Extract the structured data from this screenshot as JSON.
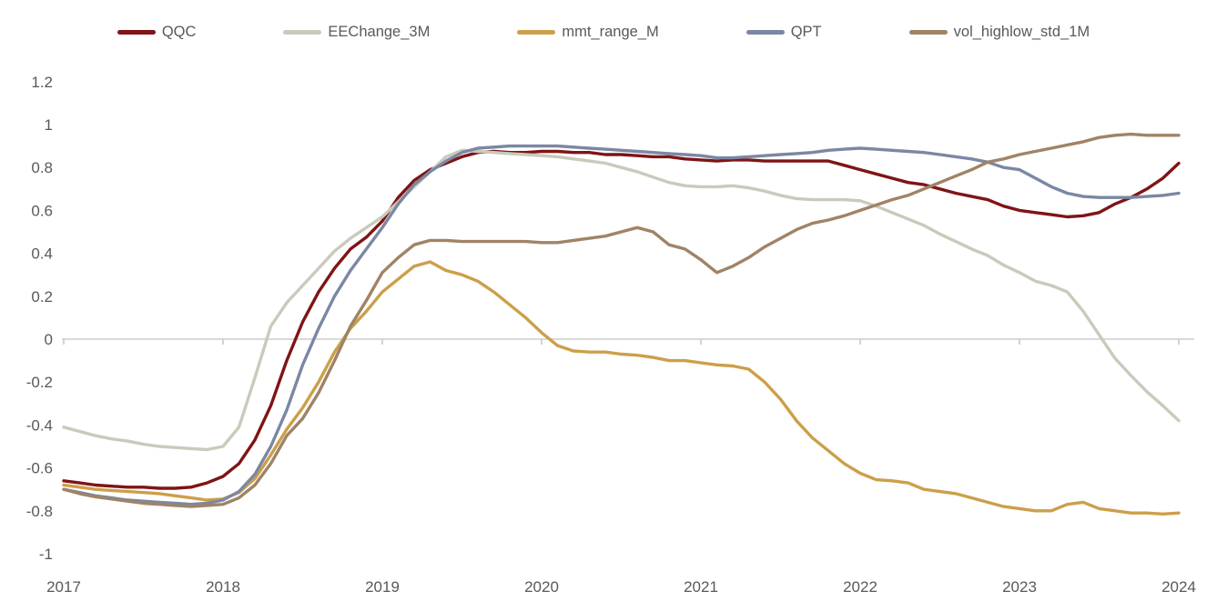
{
  "chart_data": {
    "type": "line",
    "title": "",
    "xlabel": "",
    "ylabel": "",
    "x_start": 2017,
    "x_step": 0.1,
    "x_ticks": [
      "2017",
      "2018",
      "2019",
      "2020",
      "2021",
      "2022",
      "2023",
      "2024"
    ],
    "y_ticks": [
      "1.2",
      "1",
      "0.8",
      "0.6",
      "0.4",
      "0.2",
      "0",
      "-0.2",
      "-0.4",
      "-0.6",
      "-0.8",
      "-1"
    ],
    "ylim": [
      -1,
      1.2
    ],
    "xlim": [
      2017,
      2024
    ],
    "grid": "zero-line-only",
    "legend_position": "top",
    "background_color": "#ffffff",
    "axis_text_color": "#595959",
    "zero_line_color": "#d9d9d9",
    "tick_mark_color": "#c6c6c6",
    "series": [
      {
        "name": "QQC",
        "color": "#7f1416",
        "values": [
          -0.66,
          -0.67,
          -0.68,
          -0.685,
          -0.69,
          -0.69,
          -0.695,
          -0.695,
          -0.69,
          -0.67,
          -0.64,
          -0.58,
          -0.47,
          -0.31,
          -0.1,
          0.08,
          0.22,
          0.33,
          0.42,
          0.475,
          0.55,
          0.66,
          0.74,
          0.79,
          0.82,
          0.85,
          0.87,
          0.875,
          0.87,
          0.87,
          0.875,
          0.875,
          0.87,
          0.87,
          0.86,
          0.86,
          0.855,
          0.85,
          0.85,
          0.84,
          0.835,
          0.83,
          0.835,
          0.835,
          0.83,
          0.83,
          0.83,
          0.83,
          0.83,
          0.81,
          0.79,
          0.77,
          0.75,
          0.73,
          0.72,
          0.7,
          0.68,
          0.665,
          0.65,
          0.62,
          0.6,
          0.59,
          0.58,
          0.57,
          0.575,
          0.59,
          0.63,
          0.66,
          0.7,
          0.75,
          0.82
        ]
      },
      {
        "name": "EEChange_3M",
        "color": "#c8cbbb",
        "values": [
          -0.41,
          -0.43,
          -0.45,
          -0.465,
          -0.475,
          -0.49,
          -0.5,
          -0.505,
          -0.51,
          -0.515,
          -0.5,
          -0.41,
          -0.18,
          0.06,
          0.17,
          0.25,
          0.33,
          0.41,
          0.47,
          0.52,
          0.57,
          0.64,
          0.71,
          0.78,
          0.85,
          0.88,
          0.875,
          0.87,
          0.865,
          0.86,
          0.855,
          0.85,
          0.84,
          0.83,
          0.82,
          0.8,
          0.78,
          0.755,
          0.73,
          0.715,
          0.71,
          0.71,
          0.715,
          0.705,
          0.69,
          0.67,
          0.655,
          0.65,
          0.65,
          0.65,
          0.645,
          0.62,
          0.59,
          0.56,
          0.53,
          0.49,
          0.455,
          0.42,
          0.39,
          0.345,
          0.31,
          0.27,
          0.25,
          0.22,
          0.13,
          0.02,
          -0.09,
          -0.17,
          -0.245,
          -0.31,
          -0.38
        ]
      },
      {
        "name": "mmt_range_M",
        "color": "#cc9f4a",
        "values": [
          -0.68,
          -0.69,
          -0.7,
          -0.705,
          -0.71,
          -0.715,
          -0.72,
          -0.73,
          -0.74,
          -0.75,
          -0.745,
          -0.715,
          -0.65,
          -0.54,
          -0.42,
          -0.32,
          -0.2,
          -0.06,
          0.05,
          0.13,
          0.22,
          0.28,
          0.34,
          0.36,
          0.32,
          0.3,
          0.27,
          0.22,
          0.16,
          0.1,
          0.03,
          -0.03,
          -0.055,
          -0.06,
          -0.06,
          -0.07,
          -0.075,
          -0.085,
          -0.1,
          -0.1,
          -0.11,
          -0.12,
          -0.125,
          -0.14,
          -0.2,
          -0.28,
          -0.38,
          -0.46,
          -0.52,
          -0.58,
          -0.625,
          -0.655,
          -0.66,
          -0.67,
          -0.7,
          -0.71,
          -0.72,
          -0.74,
          -0.76,
          -0.78,
          -0.79,
          -0.8,
          -0.8,
          -0.77,
          -0.76,
          -0.79,
          -0.8,
          -0.81,
          -0.81,
          -0.815,
          -0.81
        ]
      },
      {
        "name": "QPT",
        "color": "#7b87a3",
        "values": [
          -0.7,
          -0.715,
          -0.73,
          -0.74,
          -0.75,
          -0.755,
          -0.76,
          -0.765,
          -0.77,
          -0.765,
          -0.75,
          -0.71,
          -0.63,
          -0.5,
          -0.33,
          -0.12,
          0.05,
          0.2,
          0.32,
          0.42,
          0.52,
          0.63,
          0.72,
          0.78,
          0.83,
          0.87,
          0.89,
          0.895,
          0.9,
          0.9,
          0.9,
          0.9,
          0.895,
          0.89,
          0.885,
          0.88,
          0.875,
          0.87,
          0.865,
          0.86,
          0.855,
          0.845,
          0.845,
          0.85,
          0.855,
          0.86,
          0.865,
          0.87,
          0.88,
          0.885,
          0.89,
          0.885,
          0.88,
          0.875,
          0.87,
          0.86,
          0.85,
          0.84,
          0.825,
          0.8,
          0.79,
          0.75,
          0.71,
          0.68,
          0.665,
          0.66,
          0.66,
          0.66,
          0.665,
          0.67,
          0.68
        ]
      },
      {
        "name": "vol_highlow_std_1M",
        "color": "#a08366",
        "values": [
          -0.7,
          -0.72,
          -0.735,
          -0.745,
          -0.755,
          -0.765,
          -0.77,
          -0.775,
          -0.78,
          -0.775,
          -0.77,
          -0.74,
          -0.68,
          -0.58,
          -0.45,
          -0.37,
          -0.25,
          -0.1,
          0.06,
          0.18,
          0.31,
          0.38,
          0.44,
          0.46,
          0.46,
          0.455,
          0.455,
          0.455,
          0.455,
          0.455,
          0.45,
          0.45,
          0.46,
          0.47,
          0.48,
          0.5,
          0.52,
          0.5,
          0.44,
          0.42,
          0.37,
          0.31,
          0.34,
          0.38,
          0.43,
          0.47,
          0.51,
          0.54,
          0.555,
          0.575,
          0.6,
          0.625,
          0.65,
          0.67,
          0.7,
          0.73,
          0.76,
          0.79,
          0.825,
          0.84,
          0.86,
          0.875,
          0.89,
          0.905,
          0.92,
          0.94,
          0.95,
          0.955,
          0.95,
          0.95,
          0.95
        ]
      }
    ]
  }
}
